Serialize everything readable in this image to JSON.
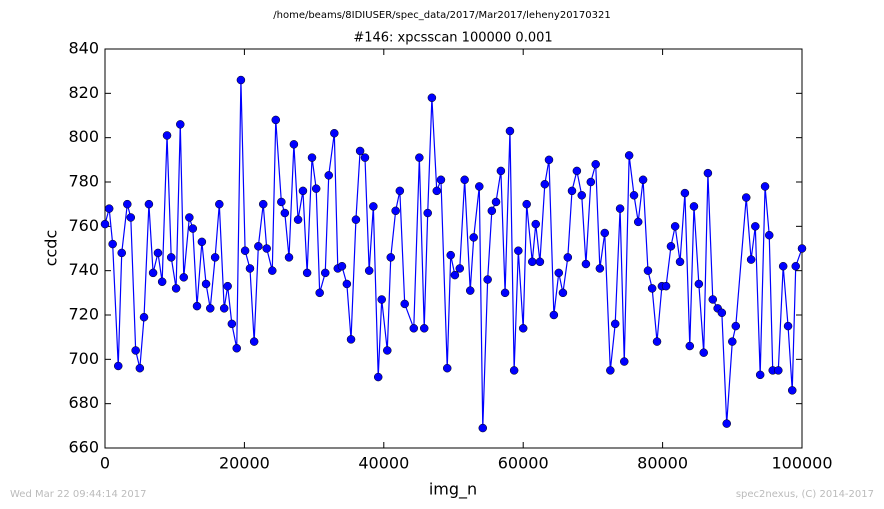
{
  "chart_data": {
    "type": "line",
    "suptitle": "/home/beams/8IDIUSER/spec_data/2017/Mar2017/leheny20170321",
    "title": "#146: xpcsscan 100000 0.001",
    "xlabel": "img_n",
    "ylabel": "ccdc",
    "footer_left": "Wed Mar 22 09:44:14 2017",
    "footer_right": "spec2nexus, (C) 2014-2017",
    "xlim": [
      0,
      100000
    ],
    "xticks": [
      0,
      20000,
      40000,
      60000,
      80000,
      100000
    ],
    "ylim": [
      660,
      840
    ],
    "yticks": [
      660,
      680,
      700,
      720,
      740,
      760,
      780,
      800,
      820,
      840
    ],
    "x": [
      0,
      600,
      1100,
      1900,
      2400,
      3200,
      3700,
      4400,
      5000,
      5600,
      6300,
      6900,
      7600,
      8200,
      8900,
      9500,
      10200,
      10800,
      11300,
      12100,
      12600,
      13200,
      13900,
      14500,
      15100,
      15800,
      16400,
      17100,
      17600,
      18200,
      18900,
      19500,
      20100,
      20800,
      21400,
      22000,
      22700,
      23200,
      24000,
      24500,
      25300,
      25800,
      26400,
      27100,
      27700,
      28400,
      29000,
      29700,
      30300,
      30800,
      31600,
      32100,
      32900,
      33400,
      34000,
      34700,
      35300,
      36000,
      36600,
      37300,
      37900,
      38500,
      39200,
      39700,
      40500,
      41000,
      41700,
      42300,
      43000,
      44300,
      45100,
      45800,
      46300,
      46900,
      47600,
      48200,
      49100,
      49600,
      50200,
      50900,
      51600,
      52400,
      52900,
      53700,
      54200,
      54900,
      55500,
      56100,
      56800,
      57400,
      58100,
      58700,
      59300,
      60000,
      60500,
      61300,
      61800,
      62400,
      63100,
      63700,
      64400,
      65100,
      65700,
      66400,
      67000,
      67700,
      68400,
      69000,
      69700,
      70400,
      71000,
      71700,
      72500,
      73200,
      73900,
      74500,
      75200,
      75900,
      76500,
      77200,
      77900,
      78500,
      79200,
      79900,
      80500,
      81200,
      81800,
      82500,
      83200,
      83900,
      84500,
      85200,
      85900,
      86500,
      87200,
      87900,
      88500,
      89200,
      90000,
      90500,
      92000,
      92700,
      93300,
      94000,
      94700,
      95300,
      95800,
      96600,
      97300,
      98000,
      98600,
      99100,
      100000
    ],
    "series": [
      {
        "name": "ccdc",
        "color": "#0000ff",
        "values": [
          761,
          768,
          752,
          697,
          748,
          770,
          764,
          704,
          696,
          719,
          770,
          739,
          748,
          735,
          801,
          746,
          732,
          806,
          737,
          764,
          759,
          724,
          753,
          734,
          723,
          746,
          770,
          723,
          733,
          716,
          705,
          826,
          749,
          741,
          708,
          751,
          770,
          750,
          740,
          808,
          771,
          766,
          746,
          797,
          763,
          776,
          739,
          791,
          777,
          730,
          739,
          783,
          802,
          741,
          742,
          734,
          709,
          763,
          794,
          791,
          740,
          769,
          692,
          727,
          704,
          746,
          767,
          776,
          725,
          714,
          791,
          714,
          766,
          818,
          776,
          781,
          696,
          747,
          738,
          741,
          781,
          731,
          755,
          778,
          669,
          736,
          767,
          771,
          785,
          730,
          803,
          695,
          749,
          714,
          770,
          744,
          761,
          744,
          779,
          790,
          720,
          739,
          730,
          746,
          776,
          785,
          774,
          743,
          780,
          788,
          741,
          757,
          695,
          716,
          768,
          699,
          792,
          774,
          762,
          781,
          740,
          732,
          708,
          733,
          733,
          751,
          760,
          744,
          775,
          706,
          769,
          734,
          703,
          784,
          727,
          723,
          721,
          671,
          708,
          715,
          773,
          745,
          760,
          693,
          778,
          756,
          695,
          695,
          742,
          715,
          686,
          742,
          750
        ]
      }
    ]
  }
}
